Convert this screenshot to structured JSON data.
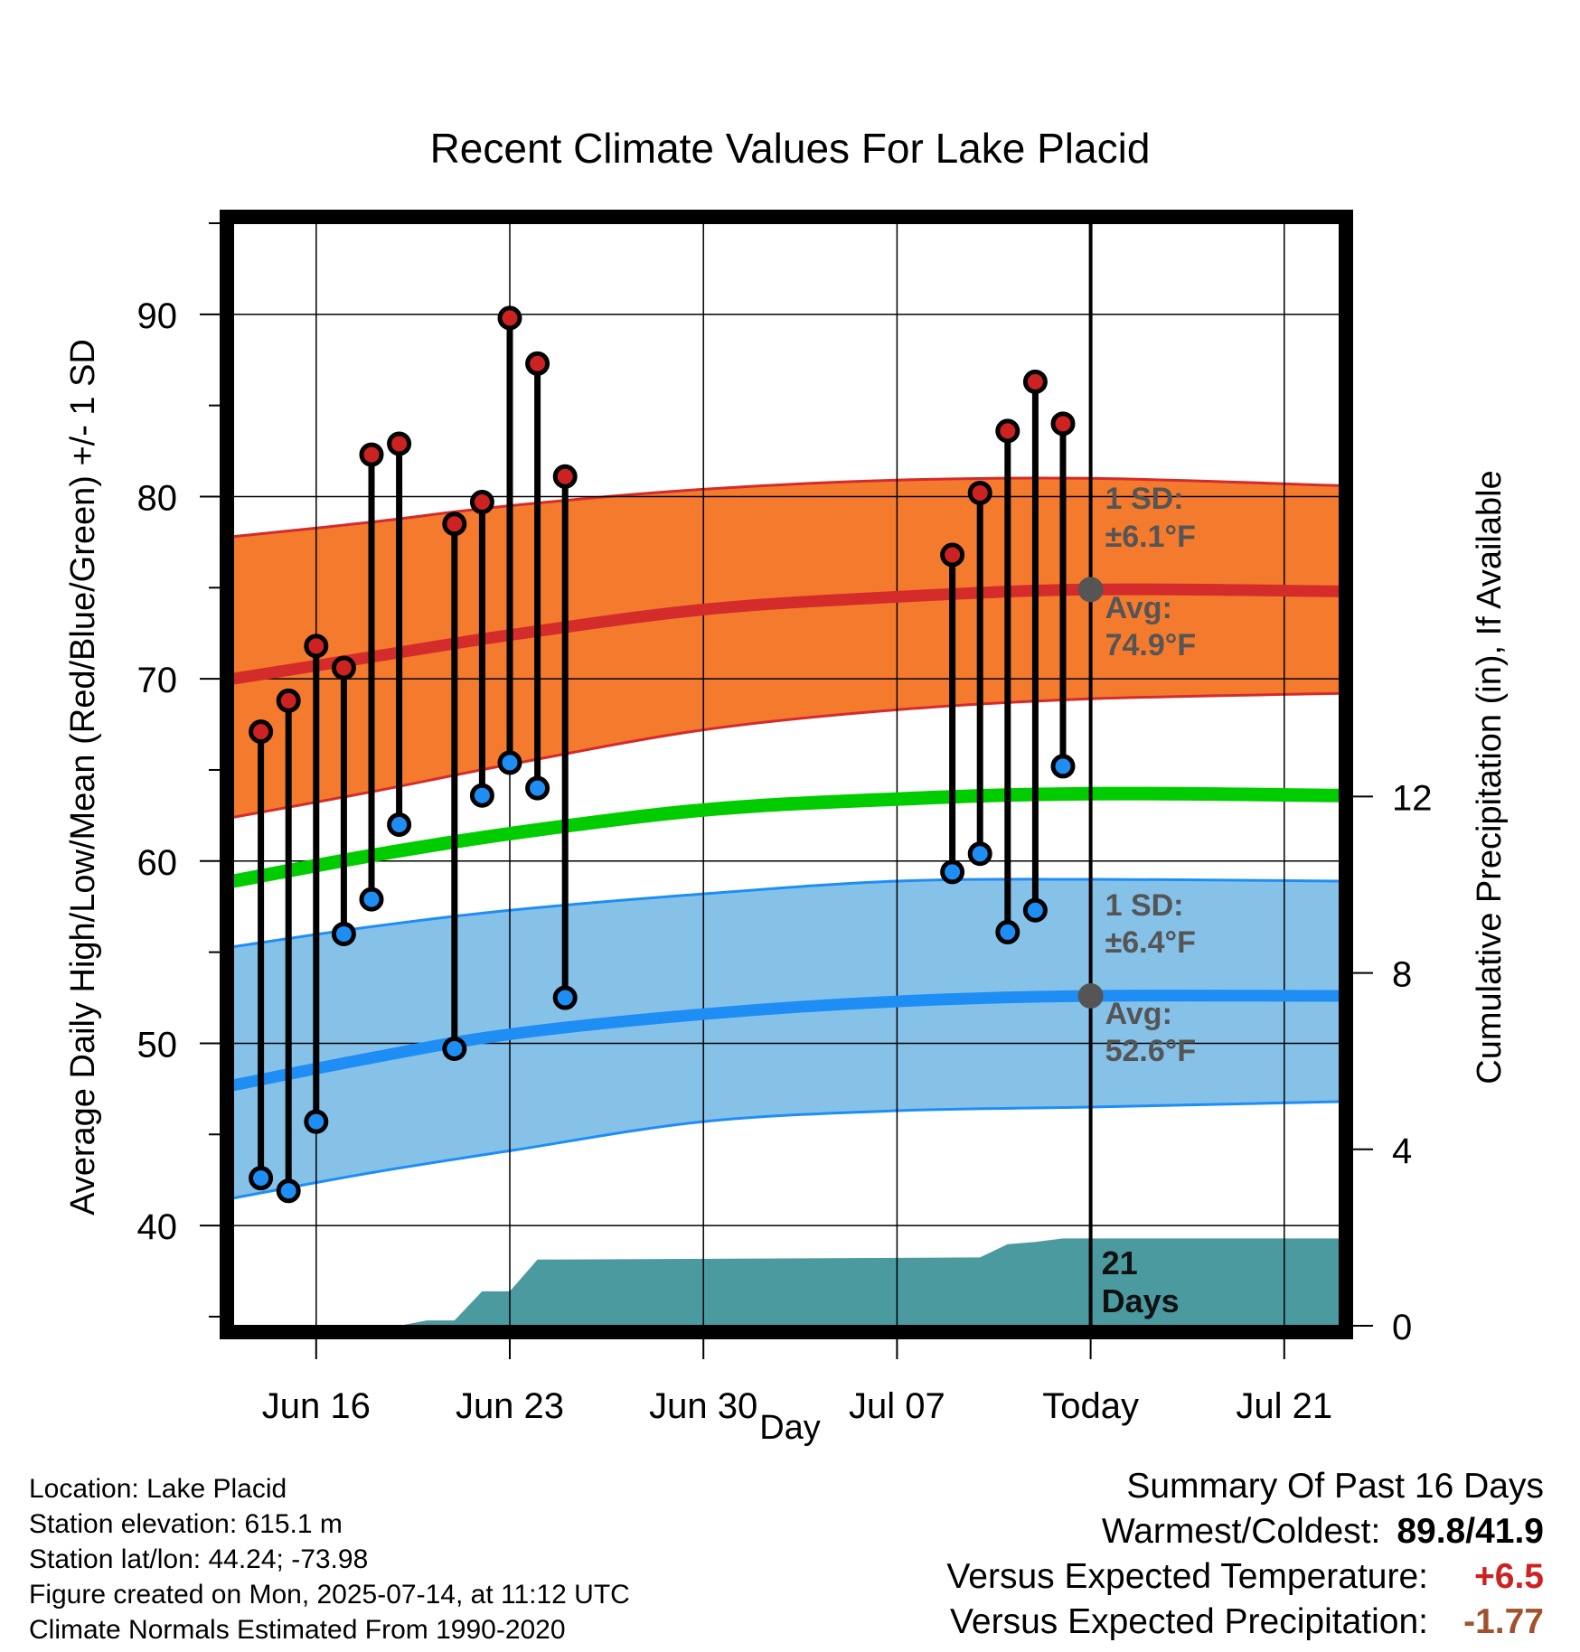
{
  "chart_data": {
    "type": "line",
    "title": "Recent Climate Values For Lake Placid",
    "xlabel": "Day",
    "ylabel_left": "Average Daily High/Low/Mean (Red/Blue/Green) +/- 1 SD",
    "ylabel_right": "Cumulative Precipitation (in), If Available",
    "ylim": [
      34.5,
      95
    ],
    "ylim_right": [
      0,
      25
    ],
    "xlim": [
      "2025-06-13",
      "2025-07-23"
    ],
    "x_ticks": [
      "2025-06-16",
      "2025-06-23",
      "2025-06-30",
      "2025-07-07",
      "2025-07-14",
      "2025-07-21"
    ],
    "x_tick_labels": [
      "Jun 16",
      "Jun 23",
      "Jun 30",
      "Jul 07",
      "Today",
      "Jul 21"
    ],
    "y_ticks": [
      40,
      50,
      60,
      70,
      80,
      90
    ],
    "y_ticks_right": [
      0,
      4,
      8,
      12
    ],
    "today": "2025-07-14",
    "grid": true,
    "normal_dates": [
      "2025-06-13",
      "2025-06-18",
      "2025-06-23",
      "2025-06-30",
      "2025-07-07",
      "2025-07-14",
      "2025-07-23"
    ],
    "normal_high": [
      70.0,
      71.2,
      72.4,
      73.8,
      74.5,
      74.9,
      74.8
    ],
    "normal_high_upper": [
      77.8,
      78.6,
      79.5,
      80.4,
      80.9,
      81.0,
      80.6
    ],
    "normal_high_lower": [
      62.4,
      63.8,
      65.3,
      67.2,
      68.3,
      68.9,
      69.2
    ],
    "normal_mean": [
      58.9,
      60.3,
      61.5,
      62.8,
      63.4,
      63.7,
      63.6
    ],
    "normal_low": [
      47.7,
      49.2,
      50.5,
      51.6,
      52.3,
      52.6,
      52.6
    ],
    "normal_low_upper": [
      55.3,
      56.4,
      57.3,
      58.2,
      58.9,
      59.0,
      58.9
    ],
    "normal_low_lower": [
      41.5,
      42.9,
      44.1,
      45.7,
      46.3,
      46.5,
      46.8
    ],
    "observed": [
      {
        "date": "2025-06-14",
        "high": 67.1,
        "low": 42.6
      },
      {
        "date": "2025-06-15",
        "high": 68.8,
        "low": 41.9
      },
      {
        "date": "2025-06-16",
        "high": 71.8,
        "low": 45.7
      },
      {
        "date": "2025-06-17",
        "high": 70.6,
        "low": 56.0
      },
      {
        "date": "2025-06-18",
        "high": 82.3,
        "low": 57.9
      },
      {
        "date": "2025-06-19",
        "high": 82.9,
        "low": 62.0
      },
      {
        "date": "2025-06-21",
        "high": 78.5,
        "low": 49.7
      },
      {
        "date": "2025-06-22",
        "high": 79.7,
        "low": 63.6
      },
      {
        "date": "2025-06-23",
        "high": 89.8,
        "low": 65.4
      },
      {
        "date": "2025-06-24",
        "high": 87.3,
        "low": 64.0
      },
      {
        "date": "2025-06-25",
        "high": 81.1,
        "low": 52.5
      },
      {
        "date": "2025-07-09",
        "high": 76.8,
        "low": 59.4
      },
      {
        "date": "2025-07-10",
        "high": 80.2,
        "low": 60.4
      },
      {
        "date": "2025-07-11",
        "high": 83.6,
        "low": 56.1
      },
      {
        "date": "2025-07-12",
        "high": 86.3,
        "low": 57.3
      },
      {
        "date": "2025-07-13",
        "high": 84.0,
        "low": 65.2
      }
    ],
    "precip_cumulative": {
      "dates": [
        "2025-06-13",
        "2025-06-19",
        "2025-06-20",
        "2025-06-21",
        "2025-06-22",
        "2025-06-23",
        "2025-06-24",
        "2025-07-10",
        "2025-07-11",
        "2025-07-12",
        "2025-07-13",
        "2025-07-23"
      ],
      "values": [
        0,
        0,
        0.12,
        0.12,
        0.78,
        0.78,
        1.5,
        1.55,
        1.85,
        1.9,
        1.98,
        1.98
      ]
    },
    "annotations": {
      "high_sd_label": "1 SD:",
      "high_sd_value": "±6.1°F",
      "high_avg_label": "Avg:",
      "high_avg_value": "74.9°F",
      "low_sd_label": "1 SD:",
      "low_sd_value": "±6.4°F",
      "low_avg_label": "Avg:",
      "low_avg_value": "52.6°F",
      "days_count": "21",
      "days_label": "Days"
    }
  },
  "colors": {
    "high_band": "#f47a2e",
    "high_line": "#d42b2b",
    "low_band": "#86c1e8",
    "low_line": "#1e8ef5",
    "mean_line": "#00cc00",
    "precip_fill": "#4a9aa0",
    "high_marker": "#cc2222",
    "low_marker": "#1e8ef5",
    "avg_dot": "#555555"
  },
  "footer": {
    "location": "Location: Lake Placid",
    "elevation": "Station elevation: 615.1 m",
    "latlon": "Station lat/lon: 44.24; -73.98",
    "created": "Figure created on Mon, 2025-07-14, at 11:12 UTC",
    "normals": "Climate Normals Estimated From 1990-2020"
  },
  "summary": {
    "heading": "Summary Of Past 16 Days",
    "warm_cold_label": "Warmest/Coldest:",
    "warm_cold_value": "89.8/41.9",
    "temp_label": "Versus Expected Temperature:",
    "temp_value": "+6.5",
    "precip_label": "Versus Expected Precipitation:",
    "precip_value": "-1.77"
  }
}
